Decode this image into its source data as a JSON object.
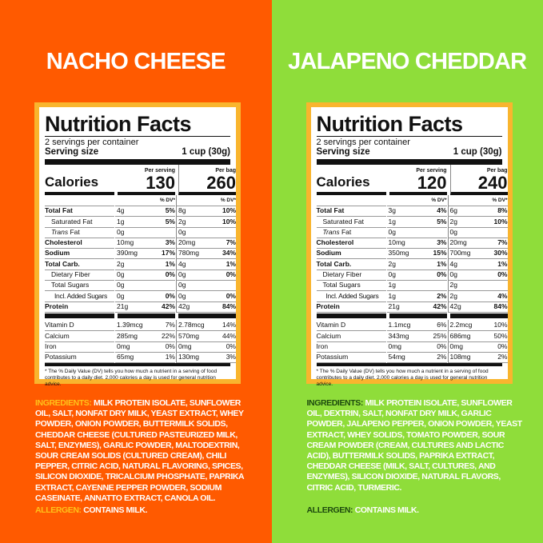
{
  "colors": {
    "left_bg": "#ff5a00",
    "right_bg": "#8fdd3a",
    "label_border": "#f9b52e",
    "left_key": "#ffc21a",
    "right_key": "#1d4a0e"
  },
  "products": [
    {
      "flavor": "NACHO CHEESE",
      "title": "Nutrition Facts",
      "servings": "2 servings per container",
      "serving_size_label": "Serving size",
      "serving_size": "1 cup (30g)",
      "calories_label": "Calories",
      "per_serving_label": "Per serving",
      "per_bag_label": "Per bag",
      "calories_serving": "130",
      "calories_bag": "260",
      "dv_label": "% DV*",
      "rows": [
        {
          "name": "Total Fat",
          "style": "bold",
          "s": "4g",
          "sp": "5%",
          "b": "8g",
          "bp": "10%"
        },
        {
          "name": "Saturated Fat",
          "style": "indent1",
          "s": "1g",
          "sp": "5%",
          "b": "2g",
          "bp": "10%"
        },
        {
          "name": "Trans Fat",
          "style": "indent1 trans",
          "s": "0g",
          "sp": "",
          "b": "0g",
          "bp": ""
        },
        {
          "name": "Cholesterol",
          "style": "bold",
          "s": "10mg",
          "sp": "3%",
          "b": "20mg",
          "bp": "7%"
        },
        {
          "name": "Sodium",
          "style": "bold",
          "s": "390mg",
          "sp": "17%",
          "b": "780mg",
          "bp": "34%"
        },
        {
          "name": "Total Carb.",
          "style": "bold",
          "s": "2g",
          "sp": "1%",
          "b": "4g",
          "bp": "1%"
        },
        {
          "name": "Dietary Fiber",
          "style": "indent1",
          "s": "0g",
          "sp": "0%",
          "b": "0g",
          "bp": "0%"
        },
        {
          "name": "Total Sugars",
          "style": "indent1",
          "s": "0g",
          "sp": "",
          "b": "0g",
          "bp": ""
        },
        {
          "name": "Incl. Added Sugars",
          "style": "indent2",
          "s": "0g",
          "sp": "0%",
          "b": "0g",
          "bp": "0%"
        },
        {
          "name": "Protein",
          "style": "bold",
          "s": "21g",
          "sp": "42%",
          "b": "42g",
          "bp": "84%"
        }
      ],
      "vitamins": [
        {
          "name": "Vitamin D",
          "s": "1.39mcg",
          "sp": "7%",
          "b": "2.78mcg",
          "bp": "14%"
        },
        {
          "name": "Calcium",
          "s": "285mg",
          "sp": "22%",
          "b": "570mg",
          "bp": "44%"
        },
        {
          "name": "Iron",
          "s": "0mg",
          "sp": "0%",
          "b": "0mg",
          "bp": "0%"
        },
        {
          "name": "Potassium",
          "s": "65mg",
          "sp": "1%",
          "b": "130mg",
          "bp": "3%"
        }
      ],
      "footnote": "* The % Daily Value (DV) tells you how much a nutrient in a serving of food contributes to a daily diet. 2,000 calories a day is used for general nutrition advice.",
      "ingredients_label": "INGREDIENTS:",
      "ingredients": "MILK PROTEIN ISOLATE, SUNFLOWER OIL, SALT, NONFAT DRY MILK, YEAST EXTRACT, WHEY POWDER, ONION POWDER, BUTTERMILK SOLIDS, CHEDDAR CHEESE (CULTURED PASTEURIZED MILK, SALT, ENZYMES), GARLIC POWDER, MALTODEXTRIN, SOUR CREAM SOLIDS (CULTURED CREAM), CHILI PEPPER, CITRIC ACID, NATURAL FLAVORING, SPICES, SILICON DIOXIDE, TRICALCIUM PHOSPHATE, PAPRIKA EXTRACT, CAYENNE PEPPER POWDER, SODIUM CASEINATE, ANNATTO EXTRACT, CANOLA OIL.",
      "allergen_label": "ALLERGEN:",
      "allergen": "CONTAINS MILK."
    },
    {
      "flavor": "JALAPENO CHEDDAR",
      "title": "Nutrition Facts",
      "servings": "2 servings per container",
      "serving_size_label": "Serving size",
      "serving_size": "1 cup (30g)",
      "calories_label": "Calories",
      "per_serving_label": "Per serving",
      "per_bag_label": "Per bag",
      "calories_serving": "120",
      "calories_bag": "240",
      "dv_label": "% DV*",
      "rows": [
        {
          "name": "Total Fat",
          "style": "bold",
          "s": "3g",
          "sp": "4%",
          "b": "6g",
          "bp": "8%"
        },
        {
          "name": "Saturated Fat",
          "style": "indent1",
          "s": "1g",
          "sp": "5%",
          "b": "2g",
          "bp": "10%"
        },
        {
          "name": "Trans Fat",
          "style": "indent1 trans",
          "s": "0g",
          "sp": "",
          "b": "0g",
          "bp": ""
        },
        {
          "name": "Cholesterol",
          "style": "bold",
          "s": "10mg",
          "sp": "3%",
          "b": "20mg",
          "bp": "7%"
        },
        {
          "name": "Sodium",
          "style": "bold",
          "s": "350mg",
          "sp": "15%",
          "b": "700mg",
          "bp": "30%"
        },
        {
          "name": "Total Carb.",
          "style": "bold",
          "s": "2g",
          "sp": "1%",
          "b": "4g",
          "bp": "1%"
        },
        {
          "name": "Dietary Fiber",
          "style": "indent1",
          "s": "0g",
          "sp": "0%",
          "b": "0g",
          "bp": "0%"
        },
        {
          "name": "Total Sugars",
          "style": "indent1",
          "s": "1g",
          "sp": "",
          "b": "2g",
          "bp": ""
        },
        {
          "name": "Incl. Added Sugars",
          "style": "indent2",
          "s": "1g",
          "sp": "2%",
          "b": "2g",
          "bp": "4%"
        },
        {
          "name": "Protein",
          "style": "bold",
          "s": "21g",
          "sp": "42%",
          "b": "42g",
          "bp": "84%"
        }
      ],
      "vitamins": [
        {
          "name": "Vitamin D",
          "s": "1.1mcg",
          "sp": "6%",
          "b": "2.2mcg",
          "bp": "10%"
        },
        {
          "name": "Calcium",
          "s": "343mg",
          "sp": "25%",
          "b": "686mg",
          "bp": "50%"
        },
        {
          "name": "Iron",
          "s": "0mg",
          "sp": "0%",
          "b": "0mg",
          "bp": "0%"
        },
        {
          "name": "Potassium",
          "s": "54mg",
          "sp": "2%",
          "b": "108mg",
          "bp": "2%"
        }
      ],
      "footnote": "* The % Daily Value (DV) tells you how much a nutrient in a serving of food contributes to a daily diet. 2,000 calories a day is used for general nutrition advice.",
      "ingredients_label": "INGREDIENTS:",
      "ingredients": "MILK PROTEIN ISOLATE, SUNFLOWER OIL, DEXTRIN, SALT, NONFAT DRY MILK, GARLIC POWDER, JALAPENO PEPPER, ONION POWDER, YEAST EXTRACT, WHEY SOLIDS, TOMATO POWDER, SOUR CREAM POWDER (CREAM, CULTURES AND LACTIC ACID), BUTTERMILK SOLIDS, PAPRIKA EXTRACT, CHEDDAR CHEESE (MILK, SALT, CULTURES, AND ENZYMES), SILICON DIOXIDE, NATURAL FLAVORS, CITRIC ACID, TURMERIC.",
      "allergen_label": "ALLERGEN:",
      "allergen": "CONTAINS MILK."
    }
  ]
}
